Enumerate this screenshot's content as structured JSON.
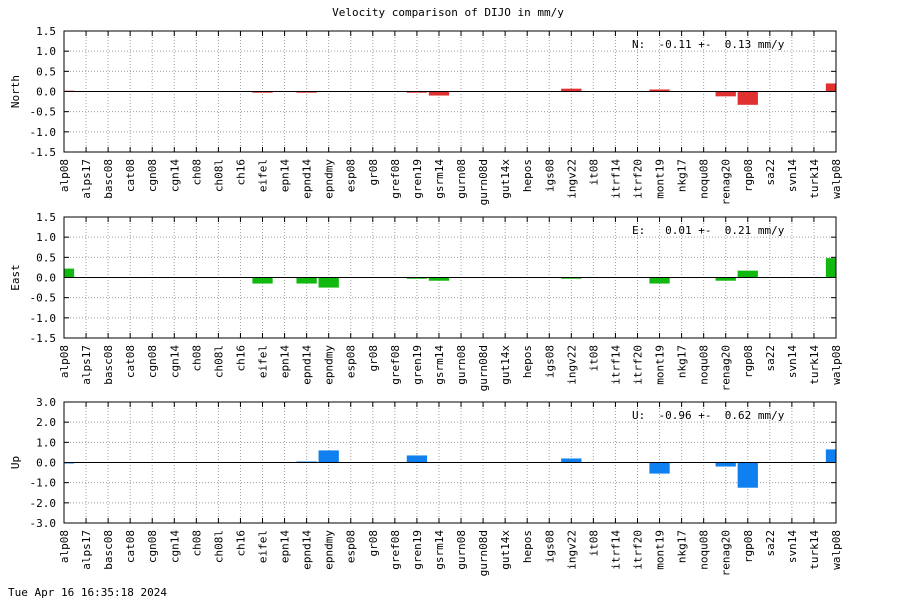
{
  "footer": "Tue Apr 16 16:35:18 2024",
  "chart_data": {
    "type": "bar",
    "title": "Velocity comparison of DIJO in mm/y",
    "categories": [
      "alp08",
      "alps17",
      "basc08",
      "cat08",
      "cgn08",
      "cgn14",
      "ch08",
      "ch08l",
      "ch16",
      "eifel",
      "epn14",
      "epnd14",
      "epndmy",
      "esp08",
      "gr08",
      "gref08",
      "gren19",
      "gsrm14",
      "gurn08",
      "gurn08d",
      "gut14x",
      "hepos",
      "igs08",
      "ingv22",
      "it08",
      "itrf14",
      "itrf20",
      "mont19",
      "nkg17",
      "noqu08",
      "renag20",
      "rgp08",
      "sa22",
      "svn14",
      "turk14",
      "walp08"
    ],
    "grid": true,
    "panels": [
      {
        "name": "North",
        "ylabel": "North",
        "color": "#e03030",
        "ylim": [
          -1.5,
          1.5
        ],
        "ticks": [
          "1.5",
          "1.0",
          "0.5",
          "0.0",
          "-0.5",
          "-1.0",
          "-1.5"
        ],
        "summary": "N:  -0.11 +-  0.13 mm/y",
        "values": [
          0.02,
          0,
          0,
          0,
          0,
          0,
          0,
          0,
          0,
          -0.03,
          0,
          -0.03,
          0,
          0,
          0,
          0,
          -0.03,
          -0.1,
          0,
          0,
          0,
          0,
          0,
          0.07,
          0,
          0,
          0,
          0.05,
          0,
          0,
          -0.12,
          -0.33,
          0,
          0,
          0,
          0.2
        ]
      },
      {
        "name": "East",
        "ylabel": "East",
        "color": "#10b810",
        "ylim": [
          -1.5,
          1.5
        ],
        "ticks": [
          "1.5",
          "1.0",
          "0.5",
          "0.0",
          "-0.5",
          "-1.0",
          "-1.5"
        ],
        "summary": "E:   0.01 +-  0.21 mm/y",
        "values": [
          0.22,
          0,
          0,
          0,
          0,
          0,
          0,
          0,
          0,
          -0.15,
          0,
          -0.15,
          -0.25,
          0,
          0,
          0,
          -0.03,
          -0.08,
          0,
          0,
          0,
          0,
          0,
          -0.03,
          0,
          0,
          0,
          -0.15,
          0,
          0,
          -0.08,
          0.17,
          0,
          0,
          0,
          0.48
        ]
      },
      {
        "name": "Up",
        "ylabel": "Up",
        "color": "#1080f0",
        "ylim": [
          -3.0,
          3.0
        ],
        "ticks": [
          "3.0",
          "2.0",
          "1.0",
          "0.0",
          "-1.0",
          "-2.0",
          "-3.0"
        ],
        "summary": "U:  -0.96 +-  0.62 mm/y",
        "values": [
          -0.05,
          0,
          0,
          0,
          0,
          0,
          0,
          0,
          0,
          0,
          0,
          0.05,
          0.6,
          0,
          0,
          0,
          0.35,
          0,
          0,
          0,
          0,
          0,
          0,
          0.2,
          0,
          0,
          0,
          -0.55,
          0,
          0,
          -0.2,
          -1.25,
          0,
          0,
          0,
          0.65
        ]
      }
    ]
  }
}
